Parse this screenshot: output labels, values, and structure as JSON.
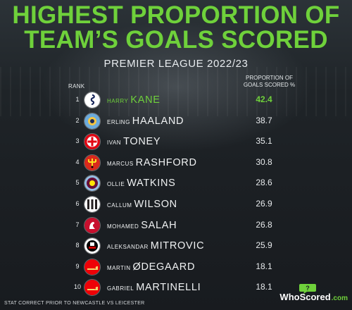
{
  "title_line1": "HIGHEST PROPORTION OF",
  "title_line2": "TEAM’S GOALS SCORED",
  "subtitle": "PREMIER LEAGUE 2022/23",
  "header_rank": "RANK",
  "header_value_line1": "PROPORTION OF",
  "header_value_line2": "GOALS SCORED %",
  "accent_color": "#6fd13b",
  "rows": [
    {
      "rank": "1",
      "first": "Harry",
      "last": "KANE",
      "value": "42.4",
      "badge": "spurs-badge-icon"
    },
    {
      "rank": "2",
      "first": "Erling",
      "last": "HAALAND",
      "value": "38.7",
      "badge": "man-city-badge-icon"
    },
    {
      "rank": "3",
      "first": "Ivan",
      "last": "TONEY",
      "value": "35.1",
      "badge": "brentford-badge-icon"
    },
    {
      "rank": "4",
      "first": "Marcus",
      "last": "RASHFORD",
      "value": "30.8",
      "badge": "man-utd-badge-icon"
    },
    {
      "rank": "5",
      "first": "Ollie",
      "last": "WATKINS",
      "value": "28.6",
      "badge": "aston-villa-badge-icon"
    },
    {
      "rank": "6",
      "first": "Callum",
      "last": "WILSON",
      "value": "26.9",
      "badge": "newcastle-badge-icon"
    },
    {
      "rank": "7",
      "first": "Mohamed",
      "last": "SALAH",
      "value": "26.8",
      "badge": "liverpool-badge-icon"
    },
    {
      "rank": "8",
      "first": "Aleksandar",
      "last": "MITROVIC",
      "value": "25.9",
      "badge": "fulham-badge-icon"
    },
    {
      "rank": "9",
      "first": "Martin",
      "last": "ØDEGAARD",
      "value": "18.1",
      "badge": "arsenal-badge-icon"
    },
    {
      "rank": "10",
      "first": "Gabriel",
      "last": "MARTINELLI",
      "value": "18.1",
      "badge": "arsenal-badge-icon"
    }
  ],
  "footer": "STAT CORRECT PRIOR TO NEWCASTLE VS LEICESTER",
  "brand_name": "WhoScored",
  "brand_suffix": ".com"
}
